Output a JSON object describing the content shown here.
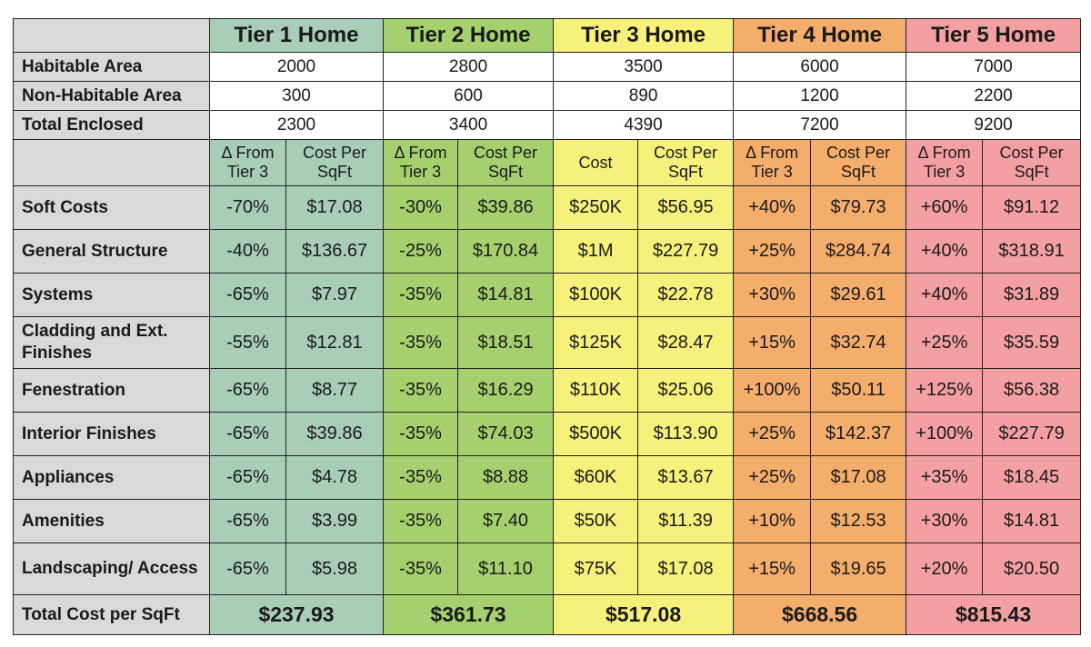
{
  "tiers": [
    {
      "name": "Tier 1 Home",
      "color": "#a8cdb9"
    },
    {
      "name": "Tier 2 Home",
      "color": "#a4d06d"
    },
    {
      "name": "Tier 3 Home",
      "color": "#f7f17b"
    },
    {
      "name": "Tier 4 Home",
      "color": "#f5ad6c"
    },
    {
      "name": "Tier 5 Home",
      "color": "#f4a0a3"
    }
  ],
  "areas": [
    {
      "label": "Habitable Area",
      "values": [
        "2000",
        "2800",
        "3500",
        "6000",
        "7000"
      ]
    },
    {
      "label": "Non-Habitable Area",
      "values": [
        "300",
        "600",
        "890",
        "1200",
        "2200"
      ]
    },
    {
      "label": "Total Enclosed",
      "values": [
        "2300",
        "3400",
        "4390",
        "7200",
        "9200"
      ]
    }
  ],
  "subheaders": [
    [
      "Δ From",
      "Tier 3"
    ],
    [
      "Cost Per",
      "SqFt"
    ],
    [
      "Δ From",
      "Tier 3"
    ],
    [
      "Cost Per",
      "SqFt"
    ],
    [
      "Cost",
      ""
    ],
    [
      "Cost Per",
      "SqFt"
    ],
    [
      "Δ From",
      "Tier 3"
    ],
    [
      "Cost Per",
      "SqFt"
    ],
    [
      "Δ From",
      "Tier 3"
    ],
    [
      "Cost Per",
      "SqFt"
    ]
  ],
  "cost_rows": [
    {
      "label": "Soft Costs",
      "cells": [
        "-70%",
        "$17.08",
        "-30%",
        "$39.86",
        "$250K",
        "$56.95",
        "+40%",
        "$79.73",
        "+60%",
        "$91.12"
      ]
    },
    {
      "label": "General Structure",
      "cells": [
        "-40%",
        "$136.67",
        "-25%",
        "$170.84",
        "$1M",
        "$227.79",
        "+25%",
        "$284.74",
        "+40%",
        "$318.91"
      ]
    },
    {
      "label": "Systems",
      "cells": [
        "-65%",
        "$7.97",
        "-35%",
        "$14.81",
        "$100K",
        "$22.78",
        "+30%",
        "$29.61",
        "+40%",
        "$31.89"
      ]
    },
    {
      "label": "Cladding and Ext. Finishes",
      "cells": [
        "-55%",
        "$12.81",
        "-35%",
        "$18.51",
        "$125K",
        "$28.47",
        "+15%",
        "$32.74",
        "+25%",
        "$35.59"
      ]
    },
    {
      "label": "Fenestration",
      "cells": [
        "-65%",
        "$8.77",
        "-35%",
        "$16.29",
        "$110K",
        "$25.06",
        "+100%",
        "$50.11",
        "+125%",
        "$56.38"
      ]
    },
    {
      "label": "Interior Finishes",
      "cells": [
        "-65%",
        "$39.86",
        "-35%",
        "$74.03",
        "$500K",
        "$113.90",
        "+25%",
        "$142.37",
        "+100%",
        "$227.79"
      ]
    },
    {
      "label": "Appliances",
      "cells": [
        "-65%",
        "$4.78",
        "-35%",
        "$8.88",
        "$60K",
        "$13.67",
        "+25%",
        "$17.08",
        "+35%",
        "$18.45"
      ]
    },
    {
      "label": "Amenities",
      "cells": [
        "-65%",
        "$3.99",
        "-35%",
        "$7.40",
        "$50K",
        "$11.39",
        "+10%",
        "$12.53",
        "+30%",
        "$14.81"
      ]
    },
    {
      "label": "Landscaping/ Access",
      "cells": [
        "-65%",
        "$5.98",
        "-35%",
        "$11.10",
        "$75K",
        "$17.08",
        "+15%",
        "$19.65",
        "+20%",
        "$20.50"
      ]
    }
  ],
  "total": {
    "label": "Total Cost per SqFt",
    "values": [
      "$237.93",
      "$361.73",
      "$517.08",
      "$668.56",
      "$815.43"
    ]
  }
}
